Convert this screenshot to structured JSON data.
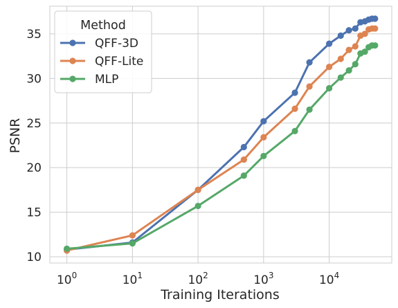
{
  "chart_data": {
    "type": "line",
    "xlabel": "Training Iterations",
    "ylabel": "PSNR",
    "xscale": "log",
    "xlim": [
      0.55,
      90000
    ],
    "ylim": [
      9.3,
      38.1
    ],
    "x_ticks": [
      {
        "value": 1,
        "base": "10",
        "exp": "0"
      },
      {
        "value": 10,
        "base": "10",
        "exp": "1"
      },
      {
        "value": 100,
        "base": "10",
        "exp": "2"
      },
      {
        "value": 1000,
        "base": "10",
        "exp": "3"
      },
      {
        "value": 10000,
        "base": "10",
        "exp": "4"
      }
    ],
    "y_ticks": [
      10,
      15,
      20,
      25,
      30,
      35
    ],
    "grid": true,
    "legend": {
      "title": "Method",
      "placement": "top-left"
    },
    "series": [
      {
        "name": "QFF-3D",
        "color": "#4c72b0",
        "x": [
          1,
          10,
          100,
          500,
          1000,
          3000,
          5000,
          10000,
          15000,
          20000,
          25000,
          30000,
          35000,
          40000,
          45000,
          50000
        ],
        "y": [
          10.8,
          11.6,
          17.5,
          22.3,
          25.2,
          28.4,
          31.8,
          33.9,
          34.8,
          35.4,
          35.6,
          36.3,
          36.4,
          36.6,
          36.7,
          36.7
        ]
      },
      {
        "name": "QFF-Lite",
        "color": "#dd8452",
        "x": [
          1,
          10,
          100,
          500,
          1000,
          3000,
          5000,
          10000,
          15000,
          20000,
          25000,
          30000,
          35000,
          40000,
          45000,
          50000
        ],
        "y": [
          10.7,
          12.4,
          17.5,
          20.9,
          23.4,
          26.6,
          29.1,
          31.3,
          32.2,
          33.2,
          33.6,
          34.8,
          35.0,
          35.5,
          35.6,
          35.6
        ]
      },
      {
        "name": "MLP",
        "color": "#55a868",
        "x": [
          1,
          10,
          100,
          500,
          1000,
          3000,
          5000,
          10000,
          15000,
          20000,
          25000,
          30000,
          35000,
          40000,
          45000,
          50000
        ],
        "y": [
          10.9,
          11.5,
          15.7,
          19.1,
          21.3,
          24.1,
          26.5,
          28.9,
          30.1,
          30.9,
          31.6,
          32.8,
          33.0,
          33.5,
          33.7,
          33.7
        ]
      }
    ]
  }
}
